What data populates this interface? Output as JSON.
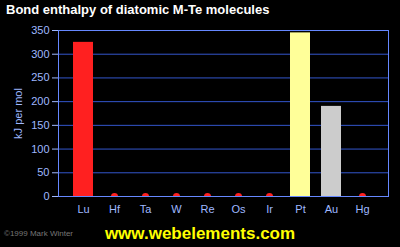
{
  "chart_data": {
    "type": "bar",
    "title": "Bond enthalpy of diatomic M-Te molecules",
    "categories": [
      "Lu",
      "Hf",
      "Ta",
      "W",
      "Re",
      "Os",
      "Ir",
      "Pt",
      "Au",
      "Hg"
    ],
    "values": [
      325,
      null,
      null,
      null,
      null,
      null,
      null,
      345,
      190,
      null
    ],
    "colors": [
      "#ff2020",
      "#ff2020",
      "#ff2020",
      "#ff2020",
      "#ff2020",
      "#ff2020",
      "#ff2020",
      "#ffff99",
      "#cccccc",
      "#ff2020"
    ],
    "y_label": "kJ per mol",
    "ylim": [
      0,
      350
    ],
    "yticks": [
      0,
      50,
      100,
      150,
      200,
      250,
      300,
      350
    ],
    "grid": true,
    "annotations": [
      "www.webelements.com",
      "©1999 Mark Winter"
    ]
  }
}
